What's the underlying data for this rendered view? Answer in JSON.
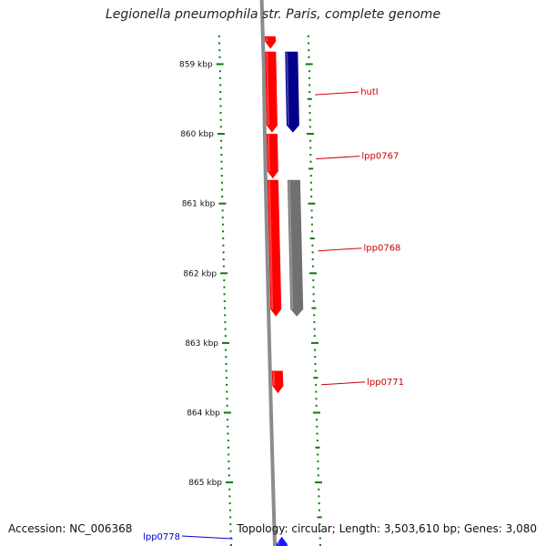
{
  "header": {
    "title": "Legionella pneumophila str. Paris, complete genome"
  },
  "footer": {
    "accession": "Accession: NC_006368",
    "summary": "Topology: circular; Length: 3,503,610 bp; Genes: 3,080"
  },
  "colors": {
    "backbone": "#8c8c8c",
    "tick": "#0a7a0a",
    "gene_red": "#ff0000",
    "gene_navy": "#00008b",
    "gene_gray": "#707070",
    "gene_blue": "#1a1aff",
    "label_red": "#cc0000",
    "label_blue": "#0000cc"
  },
  "axis": {
    "unit": "kbp",
    "ticks": [
      "859 kbp",
      "860 kbp",
      "861 kbp",
      "862 kbp",
      "863 kbp",
      "864 kbp",
      "865 kbp"
    ]
  },
  "features": [
    {
      "name": "",
      "track": "outer",
      "strand": "forward",
      "color": "gene_red",
      "kbp_start": 858.6,
      "kbp_end": 858.78
    },
    {
      "name": "",
      "track": "outer",
      "strand": "forward",
      "color": "gene_red",
      "kbp_start": 858.82,
      "kbp_end": 859.98
    },
    {
      "name": "hutI",
      "track": "middle",
      "strand": "forward",
      "color": "gene_navy",
      "kbp_start": 858.82,
      "kbp_end": 859.98
    },
    {
      "name": "lpp0767",
      "track": "outer",
      "strand": "forward",
      "color": "gene_red",
      "kbp_start": 860.0,
      "kbp_end": 860.64
    },
    {
      "name": "lpp0768",
      "track": "outer",
      "strand": "forward",
      "color": "gene_red",
      "kbp_start": 860.66,
      "kbp_end": 862.62
    },
    {
      "name": "",
      "track": "middle",
      "strand": "forward",
      "color": "gene_gray",
      "kbp_start": 860.66,
      "kbp_end": 862.62
    },
    {
      "name": "lpp0771",
      "track": "outer",
      "strand": "forward",
      "color": "gene_red",
      "kbp_start": 863.4,
      "kbp_end": 863.72
    },
    {
      "name": "lpp0778",
      "track": "outer",
      "strand": "reverse",
      "color": "gene_blue",
      "kbp_start": 865.78,
      "kbp_end": 866.0
    }
  ]
}
